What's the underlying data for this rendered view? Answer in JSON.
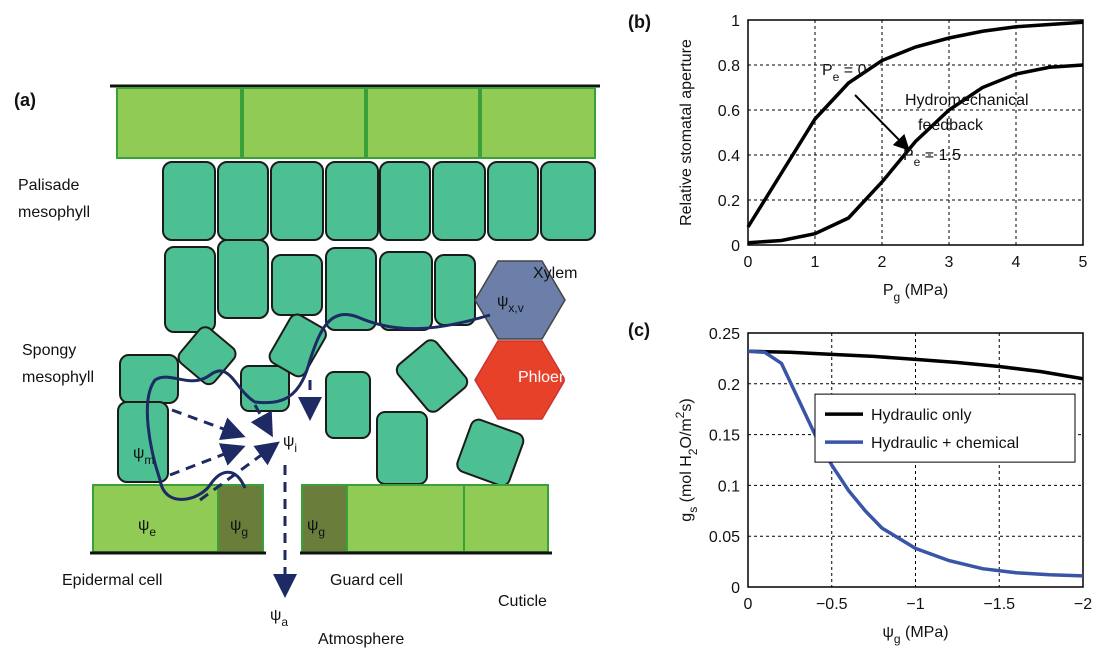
{
  "diagram": {
    "panel_label": "(a)",
    "palisade": [
      "Palisade",
      "mesophyll"
    ],
    "spongy": [
      "Spongy",
      "mesophyll"
    ],
    "xylem": "Xylem",
    "phloem": "Phloem",
    "epidermal": "Epidermal cell",
    "guard": "Guard cell",
    "cuticle": "Cuticle",
    "atmosphere": "Atmosphere",
    "psi_m": [
      {
        "text": "ψ"
      },
      {
        "text": "m",
        "style": "sub"
      }
    ],
    "psi_e": [
      {
        "text": "ψ"
      },
      {
        "text": "e",
        "style": "sub"
      }
    ],
    "psi_g1": [
      {
        "text": "ψ"
      },
      {
        "text": "g",
        "style": "sub"
      }
    ],
    "psi_g2": [
      {
        "text": "ψ"
      },
      {
        "text": "g",
        "style": "sub"
      }
    ],
    "psi_i": [
      {
        "text": "ψ"
      },
      {
        "text": "i",
        "style": "sub"
      }
    ],
    "psi_a": [
      {
        "text": "ψ"
      },
      {
        "text": "a",
        "style": "sub"
      }
    ],
    "psi_xv": [
      {
        "text": "ψ"
      },
      {
        "text": "x,v",
        "style": "sub"
      }
    ]
  },
  "chart_data": [
    {
      "type": "line",
      "panel_label": "(b)",
      "y_label": [
        {
          "text": "Relative stomatal aperture"
        }
      ],
      "x_label": [
        {
          "text": "P"
        },
        {
          "text": "g",
          "style": "sub"
        },
        {
          "text": " (MPa)"
        }
      ],
      "x": [
        0,
        0.5,
        1,
        1.5,
        2,
        2.5,
        3,
        3.5,
        4,
        4.5,
        5
      ],
      "series": [
        {
          "color": "#000000",
          "values": [
            0.08,
            0.32,
            0.56,
            0.72,
            0.82,
            0.88,
            0.92,
            0.95,
            0.97,
            0.98,
            0.99
          ]
        },
        {
          "color": "#000000",
          "values": [
            0.01,
            0.02,
            0.05,
            0.12,
            0.28,
            0.46,
            0.6,
            0.7,
            0.76,
            0.79,
            0.8
          ]
        }
      ],
      "annotations": [
        [
          {
            "text": "P"
          },
          {
            "text": "e",
            "style": "sub"
          },
          {
            "text": " = 0"
          }
        ],
        [
          {
            "text": "Hydromechanical"
          }
        ],
        [
          {
            "text": "feedback"
          }
        ],
        [
          {
            "text": "P"
          },
          {
            "text": "e",
            "style": "sub"
          },
          {
            "text": " = 1.5"
          }
        ]
      ],
      "xlim": [
        0,
        5
      ],
      "ylim": [
        0,
        1
      ],
      "xticks": [
        0,
        1,
        2,
        3,
        4,
        5
      ],
      "yticks": [
        0,
        0.2,
        0.4,
        0.6,
        0.8,
        1
      ],
      "grid": true
    },
    {
      "type": "line",
      "panel_label": "(c)",
      "y_label": [
        {
          "text": "g"
        },
        {
          "text": "s",
          "style": "sub"
        },
        {
          "text": " (mol H"
        },
        {
          "text": "2",
          "style": "sub"
        },
        {
          "text": "O/m"
        },
        {
          "text": "2",
          "style": "sup"
        },
        {
          "text": "s)"
        }
      ],
      "x_label": [
        {
          "text": "ψ"
        },
        {
          "text": "g",
          "style": "sub"
        },
        {
          "text": " (MPa)"
        }
      ],
      "series": [
        {
          "name": "Hydraulic only",
          "color": "#000000",
          "x": [
            0,
            -0.25,
            -0.5,
            -0.75,
            -1,
            -1.25,
            -1.5,
            -1.75,
            -2
          ],
          "values": [
            0.232,
            0.231,
            0.229,
            0.227,
            0.224,
            0.221,
            0.217,
            0.212,
            0.205
          ]
        },
        {
          "name": "Hydraulic + chemical",
          "color": "#3a55a8",
          "x": [
            0,
            -0.1,
            -0.2,
            -0.3,
            -0.4,
            -0.5,
            -0.6,
            -0.7,
            -0.8,
            -1,
            -1.2,
            -1.4,
            -1.6,
            -1.8,
            -2
          ],
          "values": [
            0.232,
            0.231,
            0.22,
            0.185,
            0.15,
            0.12,
            0.095,
            0.075,
            0.058,
            0.038,
            0.026,
            0.018,
            0.014,
            0.012,
            0.011
          ]
        }
      ],
      "legend": "right",
      "xlim": [
        0,
        -2
      ],
      "ylim": [
        0,
        0.25
      ],
      "xticks": [
        0,
        {
          "value": -0.5,
          "label": "−0.5"
        },
        {
          "value": -1,
          "label": "−1"
        },
        {
          "value": -1.5,
          "label": "−1.5"
        },
        {
          "value": -2,
          "label": "−2"
        }
      ],
      "yticks": [
        0,
        0.05,
        0.1,
        0.15,
        0.2,
        0.25
      ],
      "grid": true
    }
  ]
}
